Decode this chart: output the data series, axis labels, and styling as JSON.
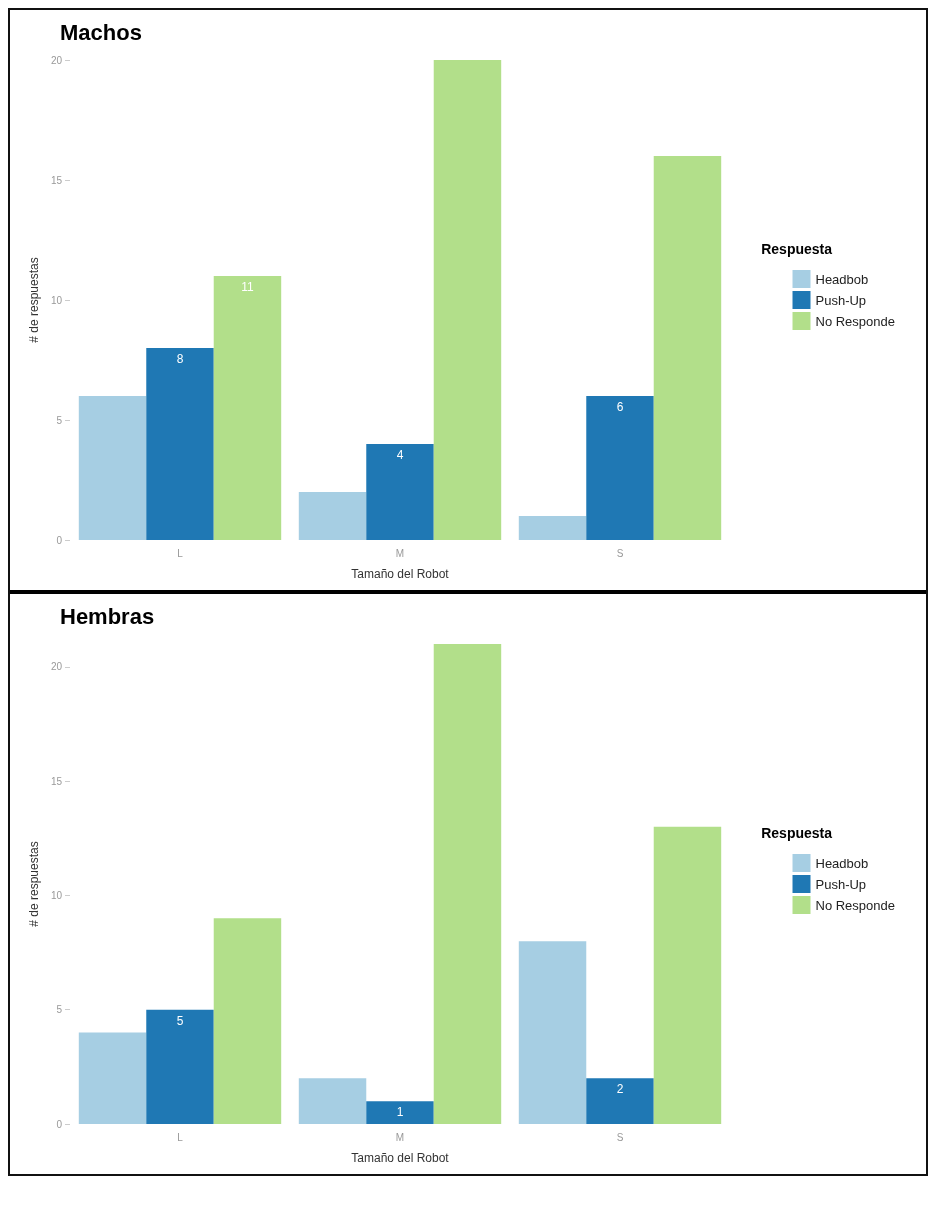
{
  "chart_data": [
    {
      "type": "bar",
      "title": "Machos",
      "xlabel": "Tamaño del Robot",
      "ylabel": "# de respuestas",
      "legend_title": "Respuesta",
      "legend": "right",
      "categories": [
        "L",
        "M",
        "S"
      ],
      "ylim": [
        0,
        20
      ],
      "yticks": [
        0,
        5,
        10,
        15,
        20
      ],
      "grid": false,
      "series": [
        {
          "name": "Headbob",
          "color": "#a6cee3",
          "values": [
            6,
            2,
            1
          ],
          "value_labels": [
            null,
            null,
            null
          ]
        },
        {
          "name": "Push-Up",
          "color": "#1f78b4",
          "values": [
            8,
            4,
            6
          ],
          "value_labels": [
            "8",
            "4",
            "6"
          ]
        },
        {
          "name": "No Responde",
          "color": "#b2df8a",
          "values": [
            11,
            20,
            16
          ],
          "value_labels": [
            "11",
            null,
            null
          ]
        }
      ]
    },
    {
      "type": "bar",
      "title": "Hembras",
      "xlabel": "Tamaño del Robot",
      "ylabel": "# de respuestas",
      "legend_title": "Respuesta",
      "legend": "right",
      "categories": [
        "L",
        "M",
        "S"
      ],
      "ylim": [
        0,
        21
      ],
      "yticks": [
        0,
        5,
        10,
        15,
        20
      ],
      "grid": false,
      "series": [
        {
          "name": "Headbob",
          "color": "#a6cee3",
          "values": [
            4,
            2,
            8
          ],
          "value_labels": [
            null,
            null,
            null
          ]
        },
        {
          "name": "Push-Up",
          "color": "#1f78b4",
          "values": [
            5,
            1,
            2
          ],
          "value_labels": [
            "5",
            "1",
            "2"
          ]
        },
        {
          "name": "No Responde",
          "color": "#b2df8a",
          "values": [
            9,
            21,
            13
          ],
          "value_labels": [
            null,
            null,
            null
          ]
        }
      ]
    }
  ]
}
